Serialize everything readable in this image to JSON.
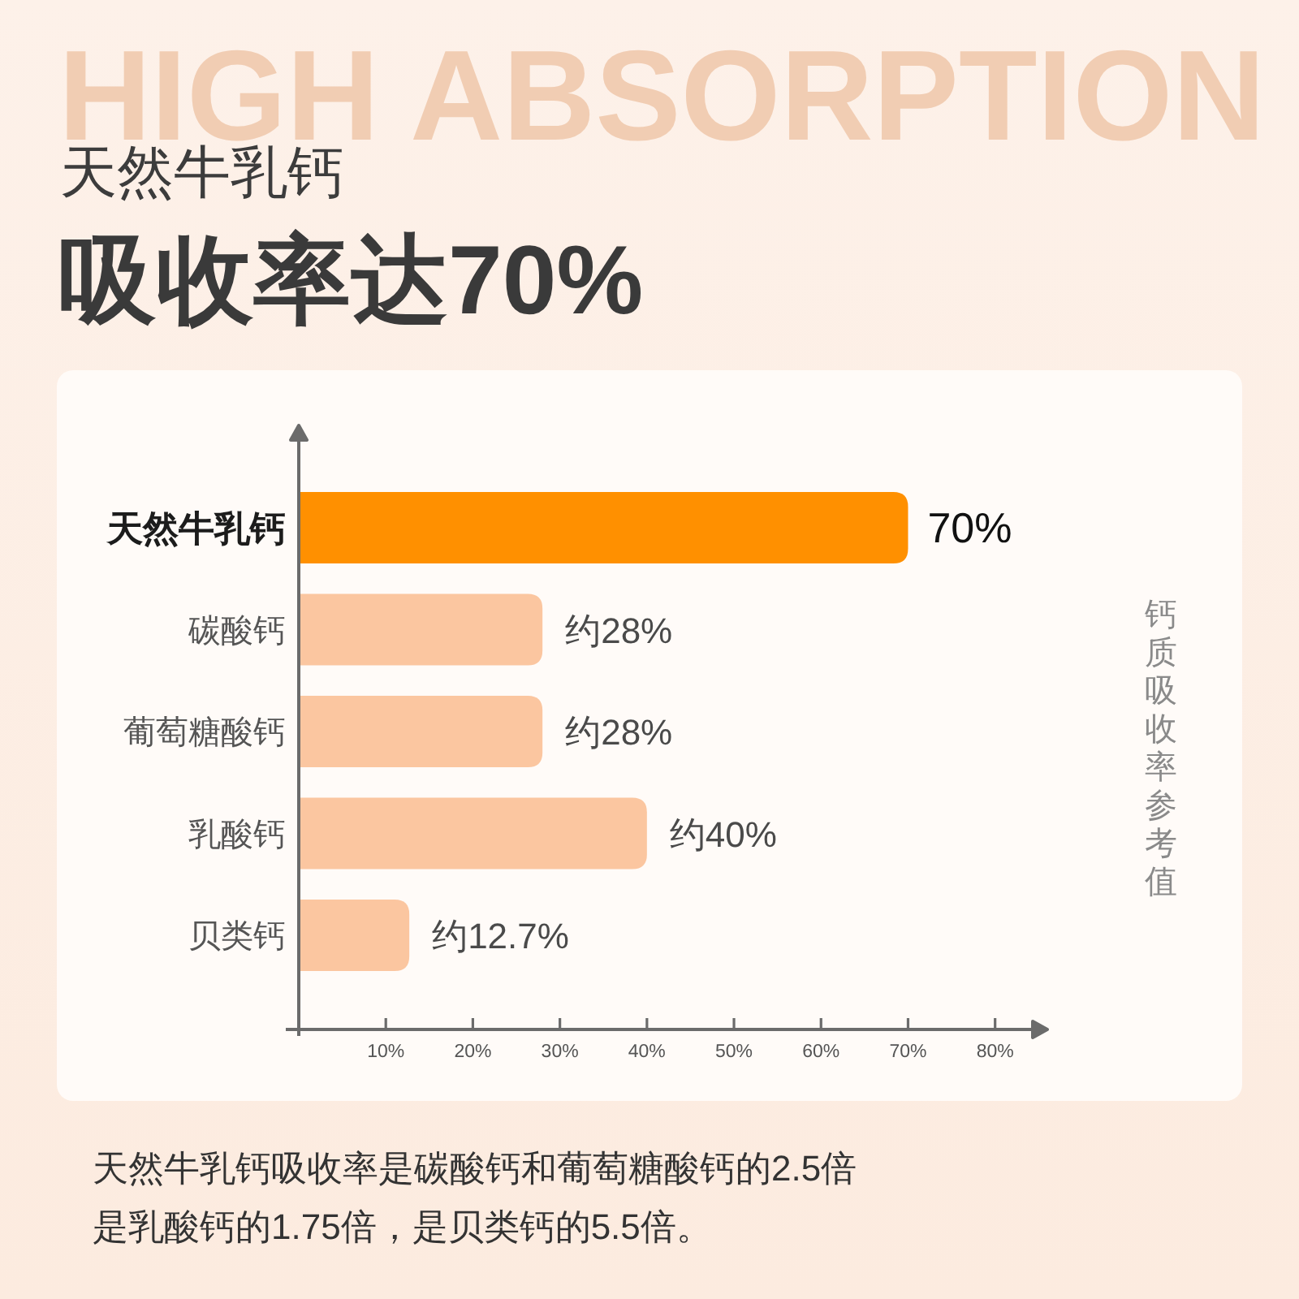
{
  "chart_data": {
    "type": "bar",
    "orientation": "horizontal",
    "title": "天然牛乳钙",
    "subtitle": "吸收率达70%",
    "categories": [
      "天然牛乳钙",
      "碳酸钙",
      "葡萄糖酸钙",
      "乳酸钙",
      "贝类钙"
    ],
    "values": [
      70,
      28,
      28,
      40,
      12.7
    ],
    "colors": [
      "#ff9000",
      "#fbc6a0",
      "#fbc6a0",
      "#fbc6a0",
      "#fbc6a0"
    ],
    "value_labels": [
      "70%",
      "约28%",
      "约28%",
      "约40%",
      "约12.7%"
    ],
    "xlim": [
      0,
      86
    ],
    "xticks": [
      {
        "value": 10,
        "label": "10%"
      },
      {
        "value": 20,
        "label": "20%"
      },
      {
        "value": 30,
        "label": "30%"
      },
      {
        "value": 40,
        "label": "40%"
      },
      {
        "value": 50,
        "label": "50%"
      },
      {
        "value": 60,
        "label": "60%"
      },
      {
        "value": 70,
        "label": "70%"
      },
      {
        "value": 80,
        "label": "80%"
      }
    ],
    "annotations": [
      "HIGH ABSORPTION",
      "钙质吸收率参考值",
      "天然牛乳钙吸收率是碳酸钙和葡萄糖酸钙的2.5倍",
      "是乳酸钙的1.75倍，是贝类钙的5.5倍。"
    ]
  }
}
